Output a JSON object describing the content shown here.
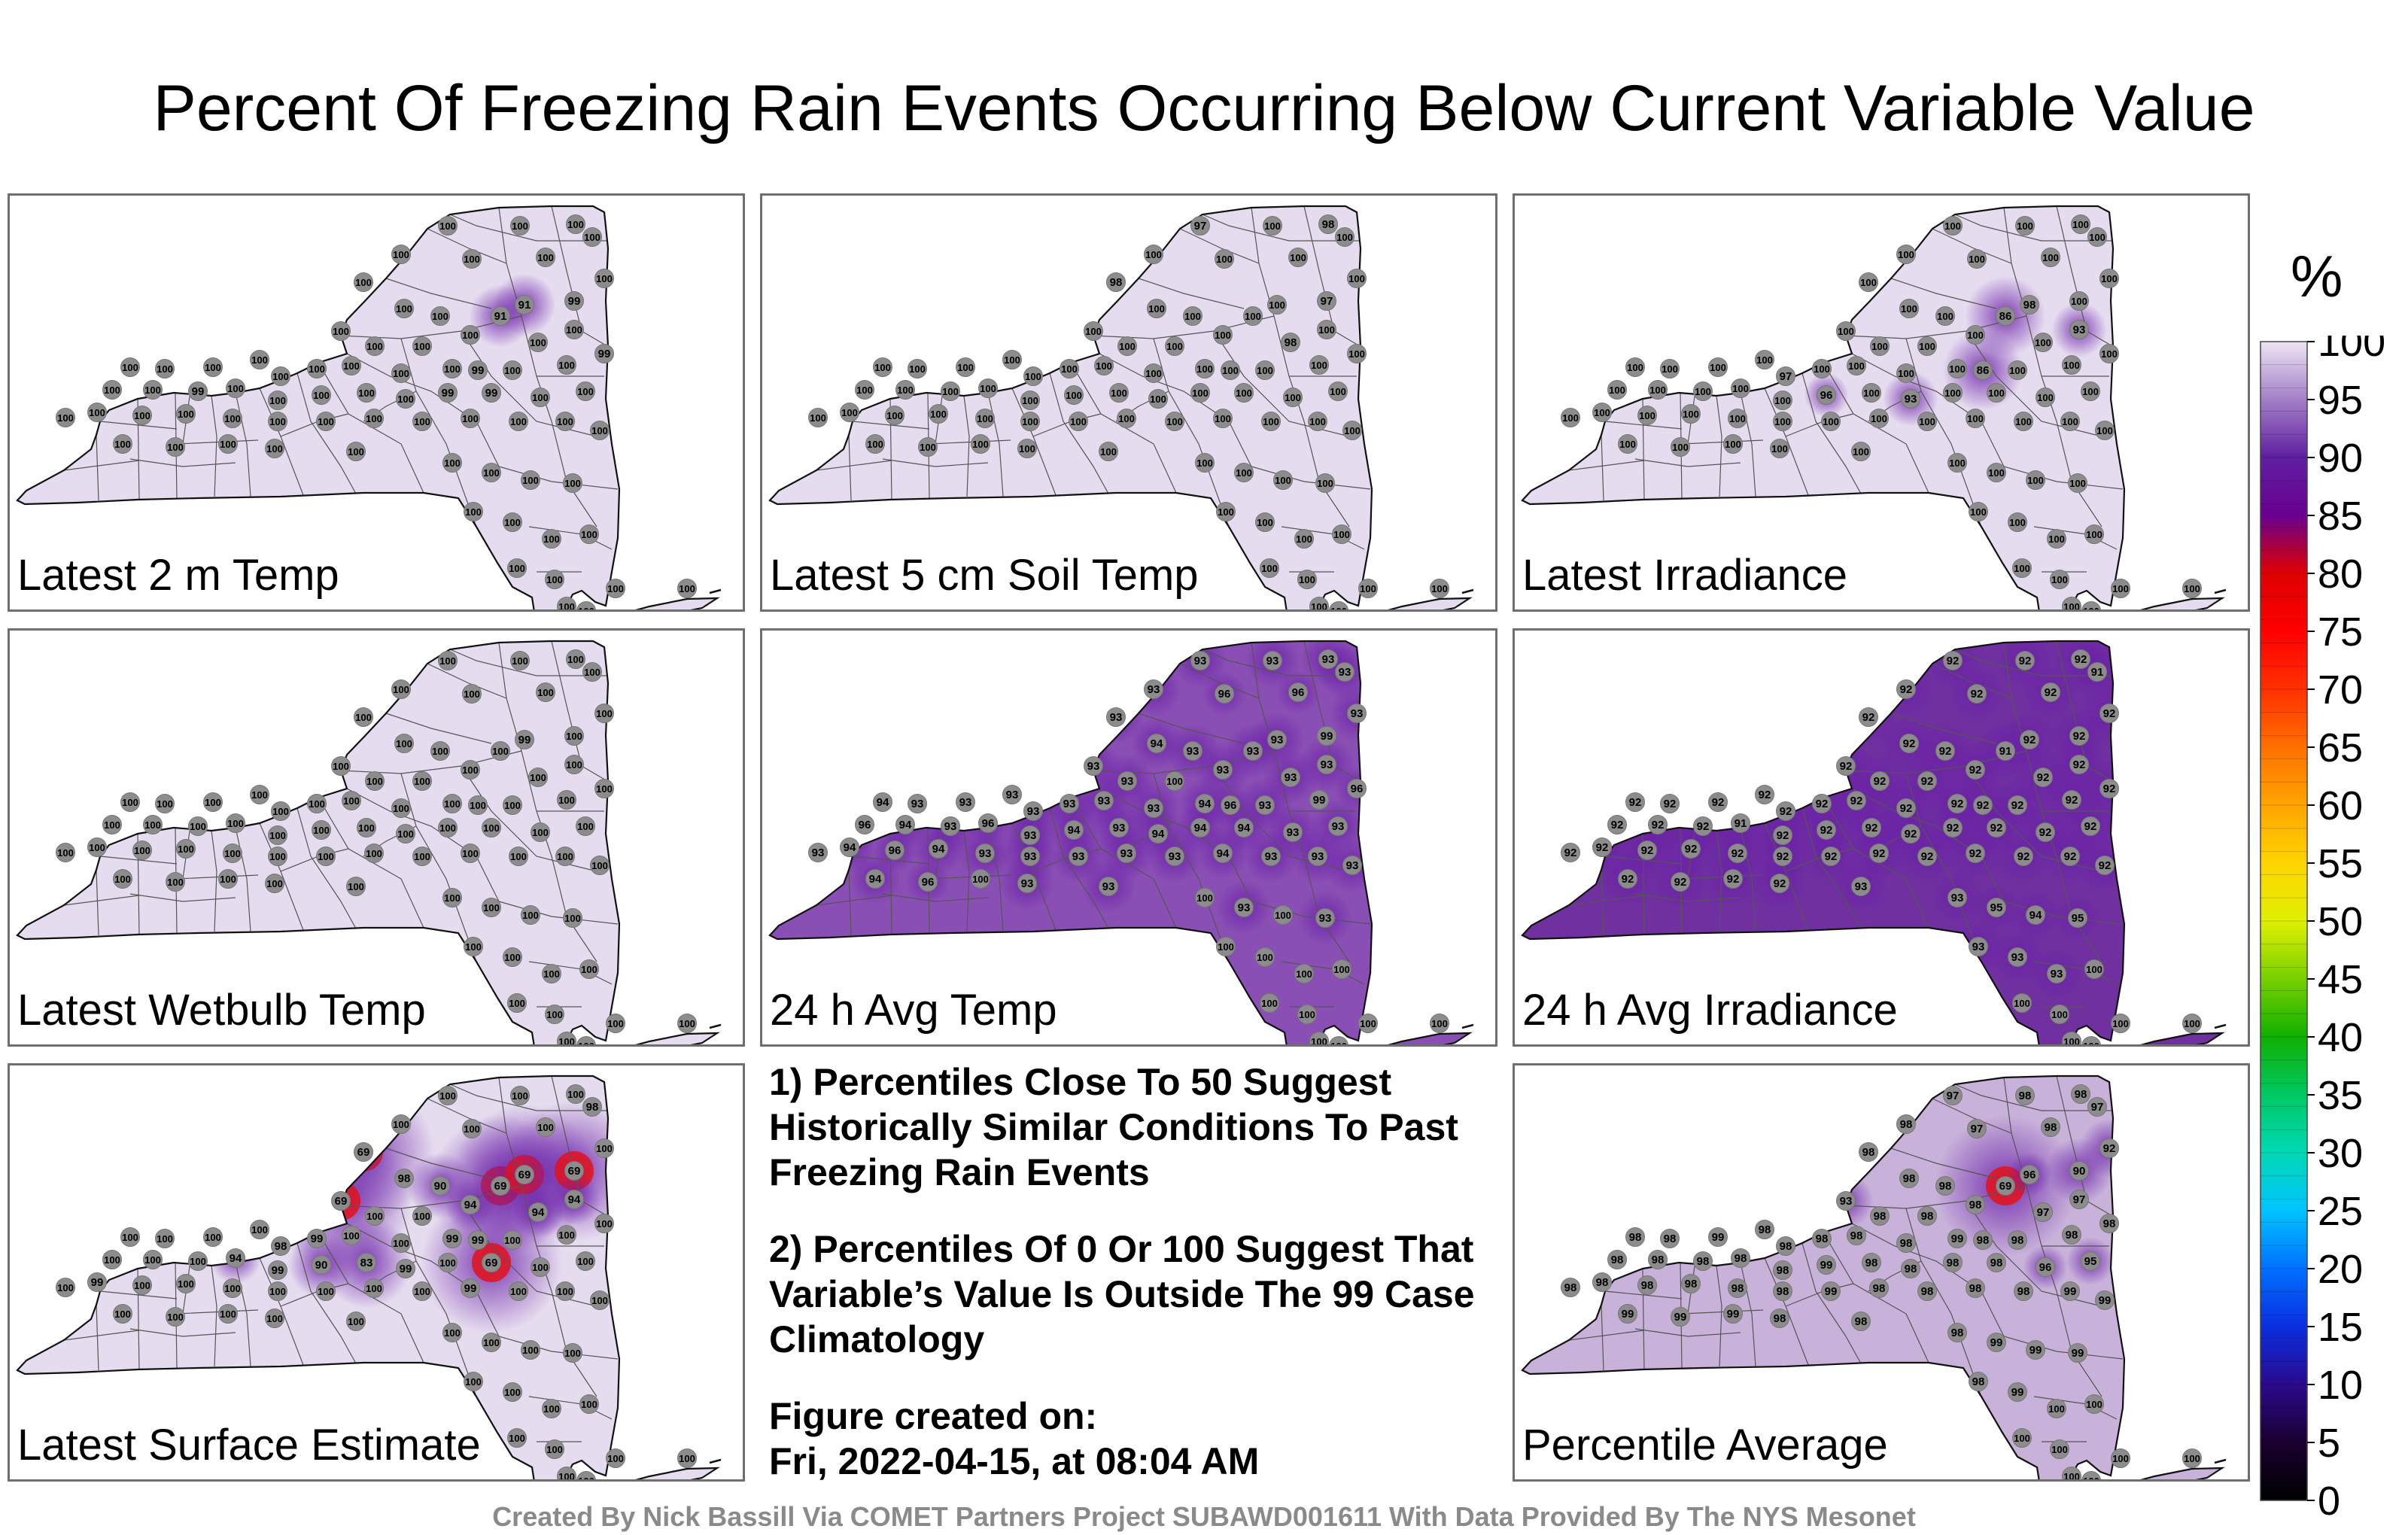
{
  "title": "Percent Of Freezing Rain Events Occurring Below Current Variable Value",
  "panels": [
    {
      "label": "Latest 2 m Temp",
      "fill": "#e6dcef",
      "values": [
        100,
        100,
        100,
        100,
        100,
        100,
        100,
        100,
        91,
        91,
        99,
        100,
        100,
        100,
        100,
        100,
        100,
        100,
        100,
        100,
        100,
        100,
        100,
        100,
        100,
        100,
        100,
        100,
        100,
        99,
        100,
        100,
        99,
        100,
        100,
        99,
        100,
        100,
        100,
        100,
        100,
        99,
        99,
        100,
        100,
        100,
        100,
        100,
        100,
        100,
        100,
        100,
        100,
        100,
        100,
        100,
        100,
        100,
        100,
        100,
        100,
        100,
        100,
        100,
        100,
        100,
        100,
        100,
        100,
        100,
        100,
        100,
        100,
        100,
        100,
        100,
        100
      ]
    },
    {
      "label": "Latest 5 cm Soil Temp",
      "fill": "#e6dcef",
      "values": [
        97,
        100,
        98,
        100,
        100,
        100,
        100,
        98,
        100,
        100,
        97,
        100,
        100,
        100,
        100,
        100,
        98,
        100,
        100,
        100,
        100,
        100,
        100,
        100,
        100,
        100,
        100,
        100,
        100,
        100,
        100,
        100,
        100,
        100,
        100,
        100,
        100,
        100,
        100,
        100,
        100,
        100,
        100,
        100,
        100,
        100,
        100,
        100,
        100,
        100,
        100,
        100,
        100,
        100,
        100,
        100,
        100,
        100,
        100,
        100,
        100,
        100,
        100,
        100,
        100,
        100,
        100,
        100,
        100,
        100,
        100,
        100,
        100,
        100,
        100,
        100,
        100
      ]
    },
    {
      "label": "Latest Irradiance",
      "fill": "#e6dcef",
      "values": [
        100,
        100,
        100,
        100,
        100,
        100,
        100,
        100,
        86,
        98,
        100,
        100,
        100,
        100,
        100,
        100,
        100,
        93,
        100,
        100,
        100,
        100,
        100,
        100,
        97,
        100,
        100,
        100,
        100,
        86,
        100,
        100,
        100,
        100,
        100,
        100,
        100,
        100,
        96,
        100,
        93,
        100,
        100,
        100,
        100,
        100,
        100,
        100,
        100,
        100,
        100,
        100,
        100,
        100,
        100,
        100,
        100,
        100,
        100,
        100,
        100,
        100,
        100,
        100,
        100,
        100,
        100,
        100,
        100,
        100,
        100,
        100,
        100,
        100,
        100,
        100,
        100
      ]
    },
    {
      "label": "Latest Wetbulb Temp",
      "fill": "#e6dcef",
      "values": [
        100,
        100,
        100,
        100,
        100,
        100,
        100,
        100,
        100,
        99,
        100,
        100,
        100,
        100,
        100,
        100,
        100,
        100,
        100,
        100,
        100,
        100,
        100,
        100,
        100,
        100,
        100,
        100,
        100,
        100,
        100,
        100,
        100,
        100,
        100,
        100,
        100,
        100,
        100,
        100,
        100,
        100,
        100,
        100,
        100,
        100,
        100,
        100,
        100,
        100,
        100,
        100,
        100,
        100,
        100,
        100,
        100,
        100,
        100,
        100,
        100,
        100,
        100,
        100,
        100,
        100,
        100,
        100,
        100,
        100,
        100,
        100,
        100,
        100,
        100,
        100,
        100
      ]
    },
    {
      "label": "24 h Avg Temp",
      "fill": "#8a4fb4",
      "values": [
        93,
        93,
        93,
        93,
        93,
        96,
        96,
        93,
        93,
        93,
        99,
        93,
        93,
        94,
        93,
        93,
        93,
        93,
        93,
        100,
        94,
        93,
        93,
        93,
        93,
        93,
        93,
        93,
        94,
        96,
        93,
        99,
        96,
        96,
        94,
        93,
        96,
        93,
        94,
        93,
        94,
        94,
        94,
        93,
        93,
        93,
        94,
        96,
        94,
        93,
        93,
        93,
        93,
        93,
        94,
        93,
        93,
        93,
        94,
        96,
        100,
        93,
        93,
        100,
        93,
        100,
        93,
        100,
        100,
        100,
        100,
        100,
        100,
        100,
        100,
        100,
        100
      ]
    },
    {
      "label": "24 h Avg Irradiance",
      "fill": "#7030a0",
      "values": [
        92,
        92,
        92,
        91,
        92,
        92,
        92,
        92,
        91,
        92,
        92,
        92,
        92,
        92,
        92,
        92,
        92,
        92,
        92,
        92,
        92,
        92,
        92,
        92,
        92,
        92,
        92,
        92,
        92,
        92,
        92,
        92,
        92,
        92,
        92,
        92,
        91,
        92,
        92,
        92,
        92,
        92,
        92,
        92,
        92,
        92,
        92,
        92,
        92,
        92,
        92,
        92,
        92,
        92,
        92,
        92,
        92,
        92,
        92,
        92,
        92,
        92,
        93,
        93,
        95,
        94,
        95,
        93,
        93,
        93,
        100,
        100,
        100,
        100,
        100,
        100,
        100
      ]
    },
    {
      "label": "Latest Surface Estimate",
      "fill": "#e6dcef",
      "values": [
        100,
        100,
        100,
        98,
        100,
        100,
        100,
        69,
        69,
        69,
        69,
        100,
        69,
        98,
        90,
        94,
        94,
        94,
        100,
        100,
        100,
        100,
        100,
        100,
        98,
        99,
        100,
        100,
        99,
        99,
        100,
        100,
        100,
        100,
        100,
        100,
        94,
        99,
        90,
        83,
        99,
        100,
        69,
        100,
        100,
        100,
        99,
        100,
        100,
        100,
        100,
        100,
        100,
        100,
        99,
        100,
        100,
        100,
        100,
        100,
        100,
        100,
        100,
        100,
        100,
        100,
        100,
        100,
        100,
        100,
        100,
        100,
        100,
        100,
        100,
        100,
        100
      ]
    },
    {
      "label": "Percentile Average",
      "fill": "#c8b2da",
      "values": [
        97,
        98,
        98,
        97,
        98,
        97,
        98,
        98,
        69,
        96,
        90,
        92,
        93,
        98,
        98,
        98,
        97,
        97,
        98,
        98,
        98,
        98,
        99,
        98,
        98,
        98,
        98,
        98,
        99,
        98,
        98,
        98,
        98,
        98,
        98,
        98,
        98,
        98,
        99,
        98,
        98,
        98,
        98,
        96,
        95,
        98,
        98,
        98,
        98,
        98,
        98,
        99,
        98,
        98,
        98,
        98,
        99,
        99,
        99,
        99,
        99,
        98,
        98,
        98,
        99,
        99,
        99,
        98,
        99,
        100,
        100,
        100,
        100,
        100,
        100,
        100,
        100
      ]
    }
  ],
  "notes": [
    "1) Percentiles Close To 50 Suggest Historically Similar Conditions To Past Freezing Rain Events",
    "2) Percentiles Of 0 Or 100 Suggest That Variable’s Value Is Outside The 99 Case Climatology",
    "Figure created on:",
    "Fri, 2022-04-15, at 08:04 AM"
  ],
  "credit": "Created By Nick Bassill Via COMET Partners Project SUBAWD001611 With Data Provided By The NYS Mesonet",
  "colorbar": {
    "unit": "%",
    "ticks": [
      "100",
      "95",
      "90",
      "85",
      "80",
      "75",
      "70",
      "65",
      "60",
      "55",
      "50",
      "45",
      "40",
      "35",
      "30",
      "25",
      "20",
      "15",
      "10",
      "5",
      "0"
    ],
    "range": [
      0,
      100
    ]
  }
}
